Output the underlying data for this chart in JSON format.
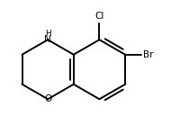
{
  "background_color": "#ffffff",
  "line_color": "#000000",
  "line_width": 1.4,
  "font_size": 7.5,
  "label_Cl": "Cl",
  "label_Br": "Br",
  "label_O": "O",
  "label_N": "N",
  "label_H": "H",
  "fig_width": 1.9,
  "fig_height": 1.38,
  "dpi": 100
}
